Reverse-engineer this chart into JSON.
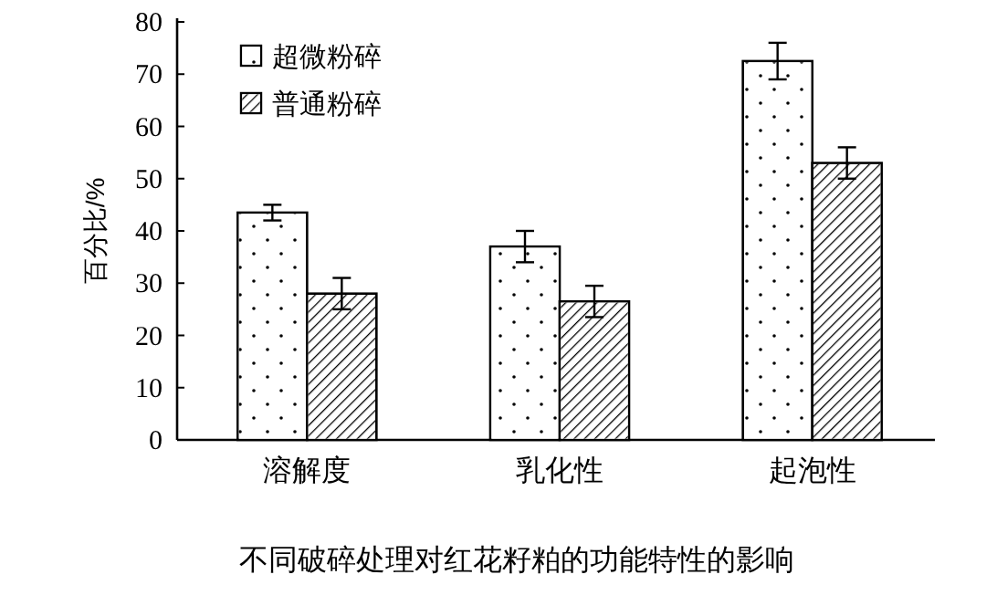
{
  "chart_data": {
    "type": "bar",
    "title": "不同破碎处理对红花籽粕的功能特性的影响",
    "ylabel": "百分比/%",
    "categories": [
      "溶解度",
      "乳化性",
      "起泡性"
    ],
    "series": [
      {
        "name": "超微粉碎",
        "color": "#ffffff",
        "values": [
          43.5,
          37,
          72.5
        ],
        "errors": [
          1.5,
          3,
          3.5
        ]
      },
      {
        "name": "普通粉碎",
        "color": "#ffffff",
        "values": [
          28,
          26.5,
          53
        ],
        "errors": [
          3,
          3,
          3
        ]
      }
    ],
    "ylim": [
      0,
      80
    ],
    "yticks": [
      0,
      10,
      20,
      30,
      40,
      50,
      60,
      70,
      80
    ],
    "grid": false,
    "legend": "top left"
  }
}
